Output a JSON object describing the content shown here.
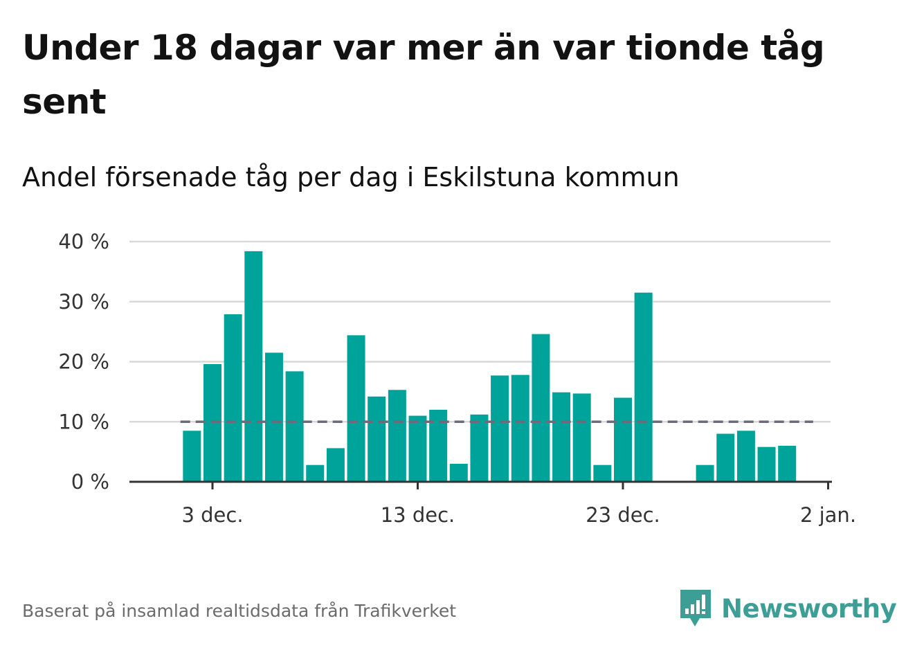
{
  "title": "Under 18 dagar var mer än var tionde tåg sent",
  "subtitle": "Andel försenade tåg per dag i Eskilstuna kommun",
  "footer": {
    "source": "Baserat på insamlad realtidsdata från Trafikverket",
    "brand": "Newsworthy"
  },
  "colors": {
    "bar": "#00a399",
    "reference_line": "#6b6b7a",
    "grid": "#d9d9d9",
    "axis": "#333333",
    "brand": "#3d9e96"
  },
  "chart_data": {
    "type": "bar",
    "x": [
      "2022-12-02",
      "2022-12-03",
      "2022-12-04",
      "2022-12-05",
      "2022-12-06",
      "2022-12-07",
      "2022-12-08",
      "2022-12-09",
      "2022-12-10",
      "2022-12-11",
      "2022-12-12",
      "2022-12-13",
      "2022-12-14",
      "2022-12-15",
      "2022-12-16",
      "2022-12-17",
      "2022-12-18",
      "2022-12-19",
      "2022-12-20",
      "2022-12-21",
      "2022-12-22",
      "2022-12-23",
      "2022-12-24",
      "2022-12-25",
      "2022-12-26",
      "2022-12-27",
      "2022-12-28",
      "2022-12-29",
      "2022-12-30",
      "2022-12-31"
    ],
    "values": [
      8.5,
      19.6,
      27.9,
      38.4,
      21.5,
      18.4,
      2.8,
      5.6,
      24.4,
      14.2,
      15.3,
      11.0,
      12.0,
      3.0,
      11.2,
      17.7,
      17.8,
      24.6,
      14.9,
      14.7,
      2.8,
      14.0,
      31.5,
      0,
      0,
      2.8,
      8.0,
      8.5,
      5.8,
      6.0
    ],
    "reference_line": {
      "value": 10,
      "style": "dashed",
      "from": "2022-12-01",
      "to": "2023-01-01"
    },
    "xlabel": "",
    "ylabel": "",
    "ylim": [
      0,
      40
    ],
    "yticks": [
      0,
      10,
      20,
      30,
      40
    ],
    "ytick_labels": [
      "0 %",
      "10 %",
      "20 %",
      "30 %",
      "40 %"
    ],
    "xticks": [
      "2022-12-03",
      "2022-12-13",
      "2022-12-23",
      "2023-01-02"
    ],
    "xtick_labels": [
      "3 dec.",
      "13 dec.",
      "23 dec.",
      "2 jan."
    ],
    "grid": true,
    "legend": "none"
  }
}
